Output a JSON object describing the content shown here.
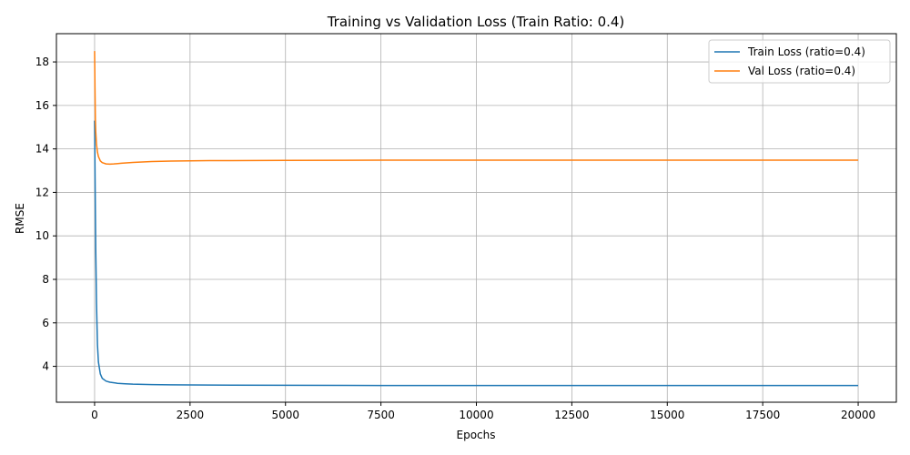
{
  "chart_data": {
    "type": "line",
    "title": "Training vs Validation Loss (Train Ratio: 0.4)",
    "xlabel": "Epochs",
    "ylabel": "RMSE",
    "xlim": [
      -1000,
      21000
    ],
    "ylim": [
      2.35,
      19.3
    ],
    "xticks": [
      0,
      2500,
      5000,
      7500,
      10000,
      12500,
      15000,
      17500,
      20000
    ],
    "yticks": [
      4,
      6,
      8,
      10,
      12,
      14,
      16,
      18
    ],
    "grid": true,
    "legend_position": "top-right",
    "series": [
      {
        "name": "Train Loss (ratio=0.4)",
        "color": "#1f77b4",
        "x": [
          0,
          10,
          20,
          30,
          50,
          75,
          100,
          150,
          200,
          300,
          400,
          600,
          800,
          1000,
          1500,
          2000,
          3000,
          5000,
          7500,
          10000,
          15000,
          20000
        ],
        "y": [
          15.3,
          13.2,
          11.2,
          9.4,
          6.9,
          5.0,
          4.2,
          3.65,
          3.45,
          3.32,
          3.27,
          3.22,
          3.2,
          3.18,
          3.16,
          3.15,
          3.14,
          3.13,
          3.12,
          3.12,
          3.12,
          3.12
        ]
      },
      {
        "name": "Val Loss (ratio=0.4)",
        "color": "#ff7f0e",
        "x": [
          0,
          10,
          20,
          30,
          50,
          75,
          100,
          150,
          200,
          300,
          400,
          500,
          700,
          1000,
          1500,
          2000,
          3000,
          5000,
          7500,
          10000,
          15000,
          20000
        ],
        "y": [
          18.5,
          16.8,
          15.4,
          14.8,
          14.2,
          13.85,
          13.65,
          13.45,
          13.37,
          13.31,
          13.3,
          13.31,
          13.34,
          13.38,
          13.42,
          13.44,
          13.46,
          13.47,
          13.48,
          13.48,
          13.48,
          13.48
        ]
      }
    ]
  }
}
